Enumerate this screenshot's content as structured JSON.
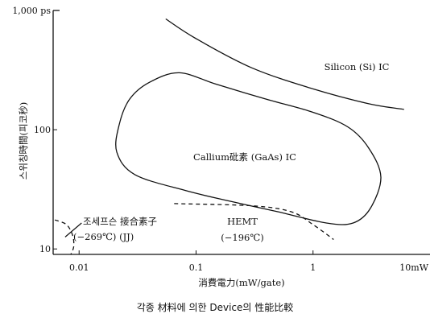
{
  "caption": "각종 材料에 의한 Device의 性能比較",
  "chart_data": {
    "type": "line",
    "xscale": "log",
    "yscale": "log",
    "xlim": [
      0.006,
      10
    ],
    "ylim": [
      9,
      1000
    ],
    "xlabel": "消費電力(mW/gate)",
    "ylabel": "스위칭時間(피코秒)",
    "xticks": [
      {
        "value": 0.01,
        "label": "0.01"
      },
      {
        "value": 0.1,
        "label": "0.1"
      },
      {
        "value": 1,
        "label": "1"
      },
      {
        "value": 10,
        "label": "10mW"
      }
    ],
    "yticks": [
      {
        "value": 1000,
        "label": "1,000 ps"
      },
      {
        "value": 100,
        "label": "100"
      },
      {
        "value": 10,
        "label": "10"
      }
    ],
    "series": [
      {
        "label": "Silicon (Si) IC",
        "style": "solid",
        "closed": false,
        "points": [
          [
            0.055,
            850
          ],
          [
            0.1,
            580
          ],
          [
            0.3,
            330
          ],
          [
            1,
            220
          ],
          [
            3,
            165
          ],
          [
            6,
            148
          ]
        ]
      },
      {
        "label": "Callium砒素 (GaAs) IC",
        "style": "solid",
        "closed": true,
        "points": [
          [
            0.072,
            300
          ],
          [
            0.15,
            240
          ],
          [
            0.4,
            180
          ],
          [
            1,
            140
          ],
          [
            2,
            105
          ],
          [
            3,
            70
          ],
          [
            3.8,
            40
          ],
          [
            3.1,
            22
          ],
          [
            2.2,
            16.5
          ],
          [
            1.3,
            16.5
          ],
          [
            0.5,
            20.5
          ],
          [
            0.2,
            25
          ],
          [
            0.08,
            31
          ],
          [
            0.03,
            42
          ],
          [
            0.021,
            65
          ],
          [
            0.022,
            110
          ],
          [
            0.027,
            180
          ],
          [
            0.04,
            250
          ]
        ]
      },
      {
        "label": "HEMT",
        "label2": "(−196℃)",
        "style": "dashed",
        "closed": false,
        "points": [
          [
            0.065,
            24
          ],
          [
            0.3,
            23
          ],
          [
            0.65,
            20.5
          ],
          [
            1,
            16
          ],
          [
            1.5,
            12
          ]
        ]
      },
      {
        "label": "조세프슨 接合素子",
        "label2": "(−269℃)  (JJ)",
        "style": "dashed",
        "closed": false,
        "points": [
          [
            0.0062,
            17.5
          ],
          [
            0.0078,
            16
          ],
          [
            0.0088,
            13
          ],
          [
            0.009,
            10.5
          ],
          [
            0.0085,
            9
          ]
        ]
      }
    ],
    "annotation_leaders": [
      {
        "for": "조세프슨 接合素子",
        "from": [
          0.0076,
          12.6
        ],
        "to": [
          0.0105,
          16.5
        ]
      }
    ]
  }
}
